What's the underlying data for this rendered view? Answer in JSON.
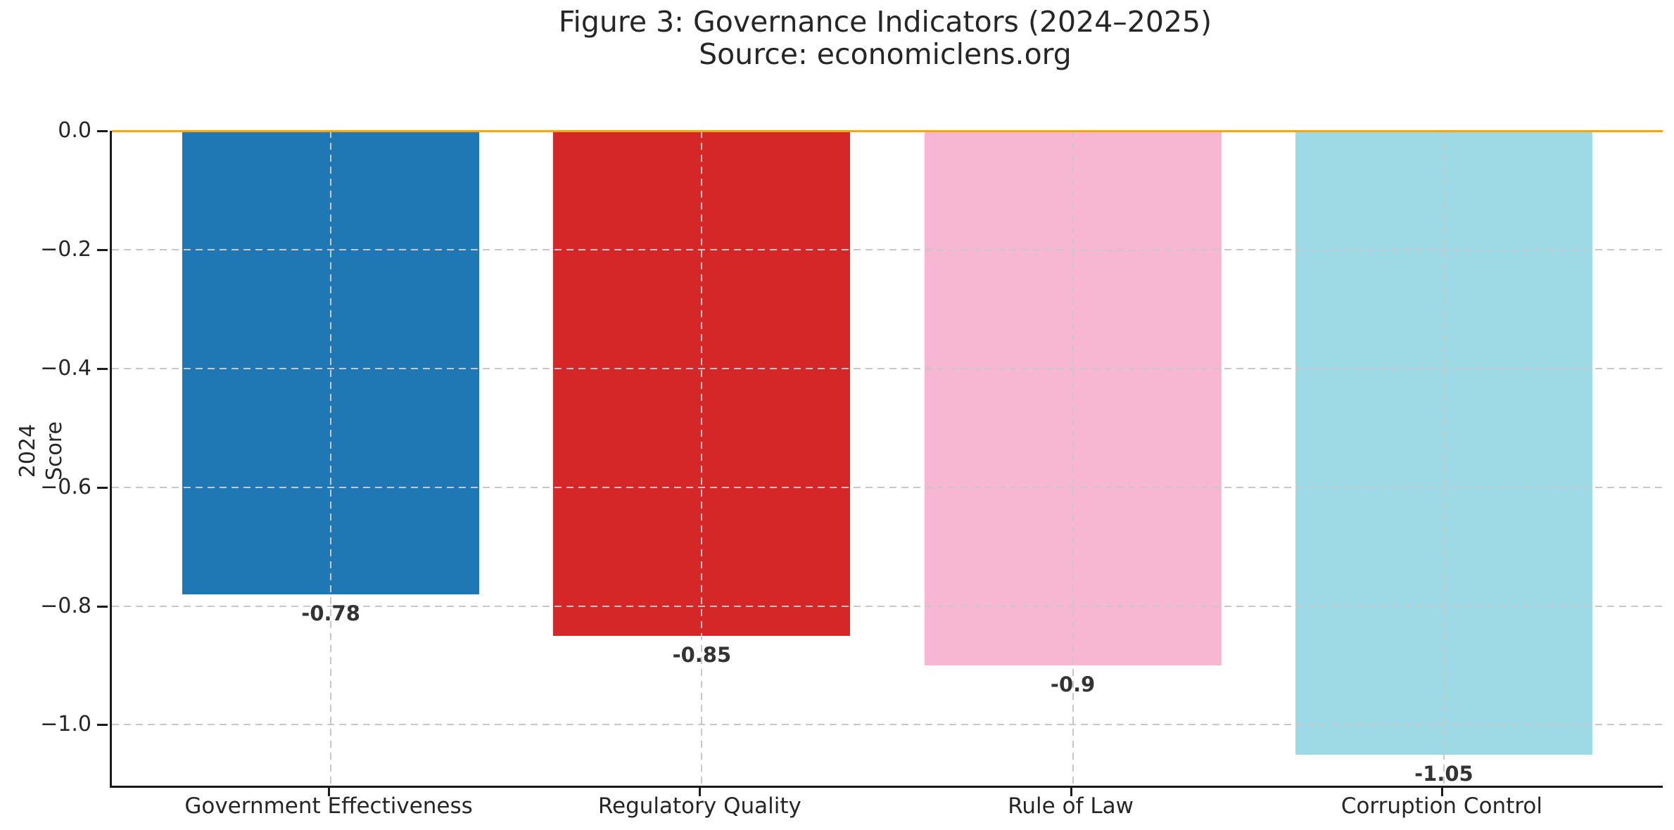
{
  "chart_data": {
    "type": "bar",
    "title": "Figure 3: Governance Indicators (2024–2025)",
    "subtitle": "Source: economiclens.org",
    "categories": [
      "Government Effectiveness",
      "Regulatory Quality",
      "Rule of Law",
      "Corruption Control"
    ],
    "values": [
      -0.78,
      -0.85,
      -0.9,
      -1.05
    ],
    "bar_labels": [
      "-0.78",
      "-0.85",
      "-0.9",
      "-1.05"
    ],
    "bar_colors": [
      "#1f77b4",
      "#d62728",
      "#f7b6d2",
      "#9edae5"
    ],
    "xlabel": "",
    "ylabel": "2024 Score",
    "ylim": [
      -1.1025,
      0
    ],
    "yticks": [
      0,
      -0.2,
      -0.4,
      -0.6,
      -0.8,
      -1.0
    ],
    "ytick_labels": [
      "0.0",
      "−0.2",
      "−0.4",
      "−0.6",
      "−0.8",
      "−1.0"
    ],
    "grid": {
      "style": "dashed",
      "color": "#c8c8c8",
      "above_bars": true
    },
    "zero_line": {
      "y": 0,
      "color": "#FFA500"
    },
    "legend": null,
    "colors": {
      "text": "#262626",
      "spine": "#1a1a1a",
      "value_label": "#333333",
      "background": "#ffffff"
    }
  }
}
